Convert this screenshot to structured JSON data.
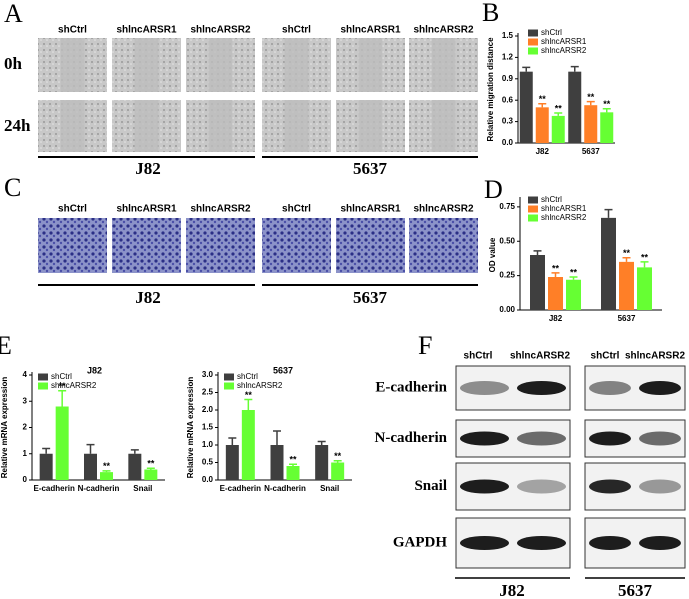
{
  "panel_a": {
    "letter": "A",
    "headers": [
      "shCtrl",
      "shlncARSR1",
      "shlncARSR2",
      "shCtrl",
      "shlncARSR1",
      "shlncARSR2"
    ],
    "rows": [
      "0h",
      "24h"
    ],
    "groups": [
      "J82",
      "5637"
    ]
  },
  "panel_c": {
    "letter": "C",
    "headers": [
      "shCtrl",
      "shlncARSR1",
      "shlncARSR2",
      "shCtrl",
      "shlncARSR1",
      "shlncARSR2"
    ],
    "groups": [
      "J82",
      "5637"
    ]
  },
  "panel_f": {
    "letter": "F",
    "headers": [
      "shCtrl",
      "shlncARSR2",
      "shCtrl",
      "shlncARSR2"
    ],
    "rows": [
      "E-cadherin",
      "N-cadherin",
      "Snail",
      "GAPDH"
    ],
    "groups": [
      "J82",
      "5637"
    ]
  },
  "chart_data": [
    {
      "type": "bar",
      "panel": "B",
      "ylabel": "Relative  migration distance",
      "categories": [
        "J82",
        "5637"
      ],
      "series": [
        {
          "name": "shCtrl",
          "color": "#3f3f3f",
          "values": [
            1.0,
            1.0
          ],
          "errors": [
            0.06,
            0.07
          ]
        },
        {
          "name": "shlncARSR1",
          "color": "#ff7f27",
          "values": [
            0.5,
            0.53
          ],
          "errors": [
            0.05,
            0.05
          ],
          "significance": [
            "**",
            "**"
          ]
        },
        {
          "name": "shlncARSR2",
          "color": "#66ff33",
          "values": [
            0.38,
            0.43
          ],
          "errors": [
            0.04,
            0.05
          ],
          "significance": [
            "**",
            "**"
          ]
        }
      ],
      "ylim": [
        0,
        1.5
      ],
      "yticks": [
        {
          "value": 0,
          "label": "0.0"
        },
        0.3,
        0.6,
        0.9,
        1.2,
        1.5
      ]
    },
    {
      "type": "bar",
      "panel": "D",
      "ylabel": "OD value",
      "categories": [
        "J82",
        "5637"
      ],
      "series": [
        {
          "name": "shCtrl",
          "color": "#3f3f3f",
          "values": [
            0.4,
            0.67
          ],
          "errors": [
            0.03,
            0.06
          ]
        },
        {
          "name": "shlncARSR1",
          "color": "#ff7f27",
          "values": [
            0.24,
            0.35
          ],
          "errors": [
            0.03,
            0.03
          ],
          "significance": [
            "**",
            "**"
          ]
        },
        {
          "name": "shlncARSR2",
          "color": "#66ff33",
          "values": [
            0.22,
            0.31
          ],
          "errors": [
            0.02,
            0.04
          ],
          "significance": [
            "**",
            "**"
          ]
        }
      ],
      "ylim": [
        0,
        0.8
      ],
      "yticks": [
        {
          "value": 0,
          "label": "0.00"
        },
        {
          "value": 0.25,
          "label": "0.25"
        },
        {
          "value": 0.5,
          "label": "0.50"
        },
        {
          "value": 0.75,
          "label": "0.75"
        }
      ]
    },
    {
      "type": "bar",
      "panel": "E",
      "title": "J82",
      "ylabel": "Relative  mRNA expression",
      "categories": [
        "E-cadherin",
        "N-cadherin",
        "Snail"
      ],
      "series": [
        {
          "name": "shCtrl",
          "color": "#3f3f3f",
          "values": [
            1,
            1,
            1
          ],
          "errors": [
            0.2,
            0.35,
            0.15
          ]
        },
        {
          "name": "shlncARSR2",
          "color": "#66ff33",
          "values": [
            2.8,
            0.3,
            0.4
          ],
          "errors": [
            0.6,
            0.05,
            0.05
          ],
          "significance": [
            "**",
            "**",
            "**"
          ]
        }
      ],
      "ylim": [
        0,
        4
      ],
      "yticks": [
        0,
        1,
        2,
        3,
        4
      ]
    },
    {
      "type": "bar",
      "title": "5637",
      "ylabel": "Relative  mRNA expression",
      "categories": [
        "E-cadherin",
        "N-cadherin",
        "Snail"
      ],
      "series": [
        {
          "name": "shCtrl",
          "color": "#3f3f3f",
          "values": [
            1,
            1,
            1
          ],
          "errors": [
            0.2,
            0.4,
            0.1
          ]
        },
        {
          "name": "shlncARSR2",
          "color": "#66ff33",
          "values": [
            2.0,
            0.4,
            0.5
          ],
          "errors": [
            0.3,
            0.05,
            0.05
          ],
          "significance": [
            "**",
            "**",
            "**"
          ]
        }
      ],
      "ylim": [
        0,
        3
      ],
      "yticks": [
        {
          "value": 0,
          "label": "0.0"
        },
        {
          "value": 0.5,
          "label": "0.5"
        },
        {
          "value": 1,
          "label": "1.0"
        },
        {
          "value": 1.5,
          "label": "1.5"
        },
        {
          "value": 2,
          "label": "2.0"
        },
        {
          "value": 2.5,
          "label": "2.5"
        },
        {
          "value": 3,
          "label": "3.0"
        }
      ]
    }
  ]
}
